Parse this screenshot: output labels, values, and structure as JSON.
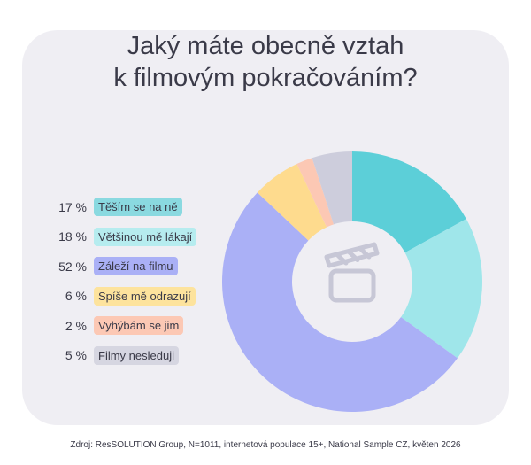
{
  "title_lines": [
    "Jaký máte obecně vztah",
    "k filmovým pokračováním?"
  ],
  "source": "Zdroj: ResSOLUTION Group, N=1011, internetová populace 15+, National Sample CZ, květen 2026",
  "center_icon": "clapperboard-icon",
  "colors": {
    "card_background": "#efeef3",
    "text": "#3a3a48",
    "icon": "#c7c7d6"
  },
  "chart_data": {
    "type": "pie",
    "title": "Jaký máte obecně vztah k filmovým pokračováním?",
    "donut": true,
    "legend_position": "left",
    "series": [
      {
        "name": "Těším se na ně",
        "value": 17,
        "label": "17 %",
        "color": "#5ccfd8",
        "tag_color": "#8ad9e0"
      },
      {
        "name": "Většinou mě lákají",
        "value": 18,
        "label": "18 %",
        "color": "#9fe6ea",
        "tag_color": "#b6ecef"
      },
      {
        "name": "Záleží na filmu",
        "value": 52,
        "label": "52 %",
        "color": "#aab0f6",
        "tag_color": "#aab0f6"
      },
      {
        "name": "Spíše mě odrazují",
        "value": 6,
        "label": "6 %",
        "color": "#fedb8e",
        "tag_color": "#fde39d"
      },
      {
        "name": "Vyhýbám se jim",
        "value": 2,
        "label": "2 %",
        "color": "#fcc8b4",
        "tag_color": "#fcc8b4"
      },
      {
        "name": "Filmy nesleduji",
        "value": 5,
        "label": "5 %",
        "color": "#cdcddc",
        "tag_color": "#d6d6e1"
      }
    ]
  }
}
